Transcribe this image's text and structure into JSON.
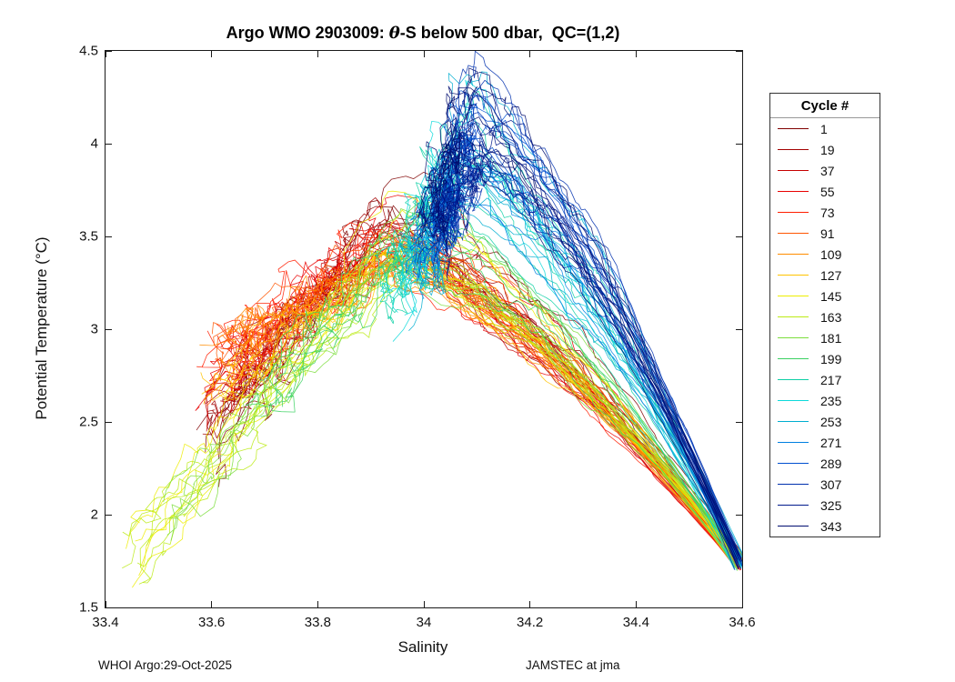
{
  "title": {
    "prefix": "Argo WMO 2903009: ",
    "italic": "θ",
    "suffix": "-S below 500 dbar,  QC=(1,2)"
  },
  "footer": {
    "left": "WHOI Argo:29-Oct-2025",
    "right": "JAMSTEC at jma"
  },
  "chart_data": {
    "type": "line",
    "title": "Argo WMO 2903009: θ-S below 500 dbar, QC=(1,2)",
    "xlabel": "Salinity",
    "ylabel": "Potential Temperature (°C)",
    "xlim": [
      33.4,
      34.6
    ],
    "ylim": [
      1.5,
      4.5
    ],
    "xticks": [
      33.4,
      33.6,
      33.8,
      34,
      34.2,
      34.4,
      34.6
    ],
    "xtick_labels": [
      "33.4",
      "33.6",
      "33.8",
      "34",
      "34.2",
      "34.4",
      "34.6"
    ],
    "yticks": [
      1.5,
      2,
      2.5,
      3,
      3.5,
      4,
      4.5
    ],
    "ytick_labels": [
      "1.5",
      "2",
      "2.5",
      "3",
      "3.5",
      "4",
      "4.5"
    ],
    "grid": false,
    "legend_title": "Cycle #",
    "legend_position": "right-outside",
    "deep_end": [
      34.595,
      1.74
    ],
    "profiles": [
      {
        "cycle": 1,
        "color": "#800000",
        "shallow": [
          33.61,
          2.4
        ],
        "peak": [
          33.93,
          3.5
        ],
        "lines": 6,
        "noise_s": 0.035,
        "noise_t": 0.15,
        "peak_jitter": 0.15
      },
      {
        "cycle": 19,
        "color": "#A30000",
        "shallow": [
          33.6,
          2.52
        ],
        "peak": [
          33.91,
          3.46
        ],
        "lines": 6,
        "noise_s": 0.035,
        "noise_t": 0.15,
        "peak_jitter": 0.12
      },
      {
        "cycle": 37,
        "color": "#C60000",
        "shallow": [
          33.61,
          2.62
        ],
        "peak": [
          33.9,
          3.44
        ],
        "lines": 6,
        "noise_s": 0.035,
        "noise_t": 0.14,
        "peak_jitter": 0.12
      },
      {
        "cycle": 55,
        "color": "#E90000",
        "shallow": [
          33.6,
          2.7
        ],
        "peak": [
          33.91,
          3.44
        ],
        "lines": 6,
        "noise_s": 0.035,
        "noise_t": 0.14,
        "peak_jitter": 0.12
      },
      {
        "cycle": 73,
        "color": "#FF1E00",
        "shallow": [
          33.61,
          2.76
        ],
        "peak": [
          33.93,
          3.42
        ],
        "lines": 6,
        "noise_s": 0.035,
        "noise_t": 0.14,
        "peak_jitter": 0.1
      },
      {
        "cycle": 91,
        "color": "#FF5500",
        "shallow": [
          33.62,
          2.8
        ],
        "peak": [
          33.94,
          3.4
        ],
        "lines": 6,
        "noise_s": 0.032,
        "noise_t": 0.13,
        "peak_jitter": 0.1
      },
      {
        "cycle": 109,
        "color": "#FF8C00",
        "shallow": [
          33.62,
          2.82
        ],
        "peak": [
          33.95,
          3.38
        ],
        "lines": 6,
        "noise_s": 0.032,
        "noise_t": 0.13,
        "peak_jitter": 0.1
      },
      {
        "cycle": 127,
        "color": "#FFC300",
        "shallow": [
          33.61,
          2.72
        ],
        "peak": [
          33.95,
          3.36
        ],
        "lines": 6,
        "noise_s": 0.032,
        "noise_t": 0.13,
        "peak_jitter": 0.1
      },
      {
        "cycle": 145,
        "color": "#EDED00",
        "shallow": [
          33.46,
          1.74
        ],
        "peak": [
          33.95,
          3.34
        ],
        "lines": 6,
        "noise_s": 0.03,
        "noise_t": 0.11,
        "peak_jitter": 0.1
      },
      {
        "cycle": 163,
        "color": "#BCEB16",
        "shallow": [
          33.44,
          1.7
        ],
        "peak": [
          33.96,
          3.38
        ],
        "lines": 6,
        "noise_s": 0.03,
        "noise_t": 0.11,
        "peak_jitter": 0.12
      },
      {
        "cycle": 181,
        "color": "#7CDE3C",
        "shallow": [
          33.52,
          1.95
        ],
        "peak": [
          33.97,
          3.48
        ],
        "lines": 5,
        "noise_s": 0.03,
        "noise_t": 0.12,
        "peak_jitter": 0.2
      },
      {
        "cycle": 199,
        "color": "#3BD162",
        "shallow": [
          33.7,
          2.6
        ],
        "peak": [
          33.99,
          3.52
        ],
        "lines": 5,
        "noise_s": 0.03,
        "noise_t": 0.12,
        "peak_jitter": 0.2
      },
      {
        "cycle": 217,
        "color": "#0ED0A6",
        "shallow": [
          33.92,
          3.1
        ],
        "peak": [
          34.04,
          3.8
        ],
        "lines": 6,
        "noise_s": 0.03,
        "noise_t": 0.16,
        "peak_jitter": 0.25
      },
      {
        "cycle": 235,
        "color": "#0CD9DB",
        "shallow": [
          33.96,
          3.18
        ],
        "peak": [
          34.06,
          3.88
        ],
        "lines": 7,
        "noise_s": 0.03,
        "noise_t": 0.17,
        "peak_jitter": 0.28
      },
      {
        "cycle": 253,
        "color": "#00AED0",
        "shallow": [
          33.99,
          3.26
        ],
        "peak": [
          34.07,
          3.82
        ],
        "lines": 6,
        "noise_s": 0.028,
        "noise_t": 0.16,
        "peak_jitter": 0.25
      },
      {
        "cycle": 271,
        "color": "#007FE0",
        "shallow": [
          34.0,
          3.34
        ],
        "peak": [
          34.08,
          3.92
        ],
        "lines": 7,
        "noise_s": 0.028,
        "noise_t": 0.16,
        "peak_jitter": 0.27
      },
      {
        "cycle": 289,
        "color": "#0050D0",
        "shallow": [
          34.01,
          3.42
        ],
        "peak": [
          34.09,
          4.0
        ],
        "lines": 7,
        "noise_s": 0.026,
        "noise_t": 0.16,
        "peak_jitter": 0.28
      },
      {
        "cycle": 307,
        "color": "#0030AE",
        "shallow": [
          34.02,
          3.48
        ],
        "peak": [
          34.1,
          4.05
        ],
        "lines": 7,
        "noise_s": 0.026,
        "noise_t": 0.15,
        "peak_jitter": 0.28
      },
      {
        "cycle": 325,
        "color": "#001A8C",
        "shallow": [
          34.03,
          3.52
        ],
        "peak": [
          34.11,
          4.1
        ],
        "lines": 7,
        "noise_s": 0.024,
        "noise_t": 0.15,
        "peak_jitter": 0.28
      },
      {
        "cycle": 343,
        "color": "#000D70",
        "shallow": [
          34.02,
          3.55
        ],
        "peak": [
          34.07,
          4.18
        ],
        "lines": 7,
        "noise_s": 0.024,
        "noise_t": 0.15,
        "peak_jitter": 0.25
      }
    ]
  }
}
